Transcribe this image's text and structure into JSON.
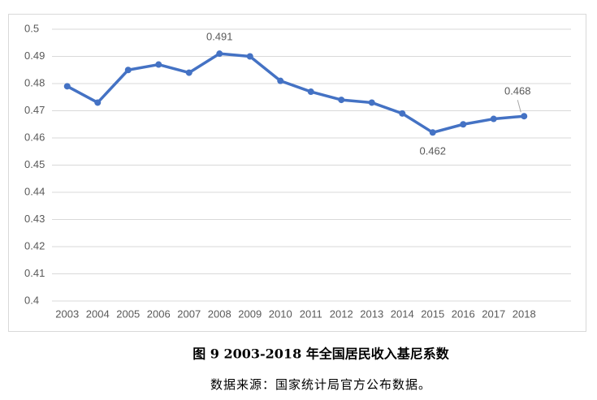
{
  "chart_data": {
    "type": "line",
    "title": "图 9  2003-2018 年全国居民收入基尼系数",
    "note": "数据来源：国家统计局官方公布数据。",
    "categories": [
      "2003",
      "2004",
      "2005",
      "2006",
      "2007",
      "2008",
      "2009",
      "2010",
      "2011",
      "2012",
      "2013",
      "2014",
      "2015",
      "2016",
      "2017",
      "2018"
    ],
    "series": [
      {
        "color": "#4472c4",
        "values": [
          0.479,
          0.473,
          0.485,
          0.487,
          0.484,
          0.491,
          0.49,
          0.481,
          0.477,
          0.474,
          0.473,
          0.469,
          0.462,
          0.465,
          0.467,
          0.468
        ],
        "value_labels": [
          null,
          null,
          null,
          null,
          null,
          "0.491",
          null,
          null,
          null,
          null,
          null,
          null,
          "0.462",
          null,
          null,
          "0.468"
        ]
      }
    ],
    "ylim": [
      0.4,
      0.5
    ],
    "yticks": [
      0.4,
      0.41,
      0.42,
      0.43,
      0.44,
      0.45,
      0.46,
      0.47,
      0.48,
      0.49,
      0.5
    ],
    "grid": true
  }
}
